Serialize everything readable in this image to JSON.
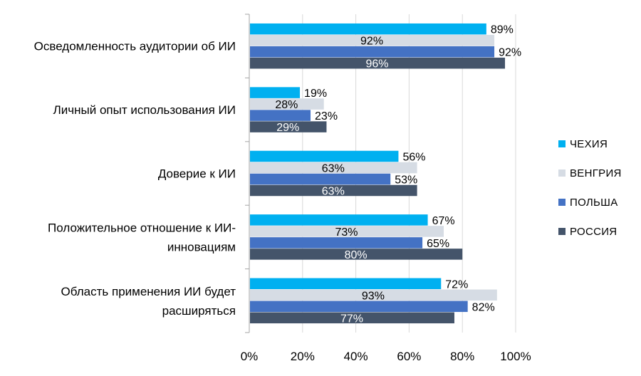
{
  "chart_data": {
    "type": "bar",
    "orientation": "horizontal",
    "categories": [
      "Осведомленность аудитории об ИИ",
      "Личный опыт использования ИИ",
      "Доверие к ИИ",
      "Положительное отношение к ИИ-инновациям",
      "Область применения ИИ будет расширяться"
    ],
    "category_label_lines": [
      [
        "Осведомленность аудитории об ИИ"
      ],
      [
        "Личный опыт использования ИИ"
      ],
      [
        "Доверие к ИИ"
      ],
      [
        "Положительное отношение к ИИ-",
        "инновациям"
      ],
      [
        "Область применения ИИ будет",
        "расширяться"
      ]
    ],
    "series": [
      {
        "name": "ЧЕХИЯ",
        "color": "#00b0f0",
        "values": [
          89,
          19,
          56,
          67,
          72
        ],
        "labels": [
          "89%",
          "19%",
          "56%",
          "67%",
          "72%"
        ],
        "label_position": "outside",
        "label_color": "#000000"
      },
      {
        "name": "ВЕНГРИЯ",
        "color": "#d6dce4",
        "values": [
          92,
          28,
          63,
          73,
          93
        ],
        "labels": [
          "92%",
          "28%",
          "63%",
          "73%",
          "93%"
        ],
        "label_position": "inside",
        "label_color": "#000000"
      },
      {
        "name": "ПОЛЬША",
        "color": "#4472c4",
        "values": [
          92,
          23,
          53,
          65,
          82
        ],
        "labels": [
          "92%",
          "23%",
          "53%",
          "65%",
          "82%"
        ],
        "label_position": "outside",
        "label_color": "#000000"
      },
      {
        "name": "РОССИЯ",
        "color": "#44546a",
        "values": [
          96,
          29,
          63,
          80,
          77
        ],
        "labels": [
          "96%",
          "29%",
          "63%",
          "80%",
          "77%"
        ],
        "label_position": "inside",
        "label_color": "#ffffff"
      }
    ],
    "xlim": [
      0,
      100
    ],
    "xticks": [
      0,
      20,
      40,
      60,
      80,
      100
    ],
    "xtick_labels": [
      "0%",
      "20%",
      "40%",
      "60%",
      "80%",
      "100%"
    ],
    "grid": true,
    "gridline_color": "#d9d9d9",
    "axis_color": "#a6a6a6",
    "legend_position": "right",
    "title": "",
    "xlabel": "",
    "ylabel": ""
  }
}
